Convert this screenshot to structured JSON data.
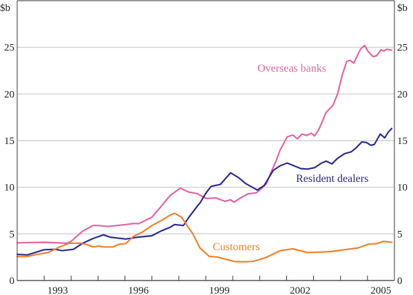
{
  "chart_data": {
    "type": "line",
    "unit_label_left": "$b",
    "unit_label_right": "$b",
    "xlim": [
      1992,
      2006
    ],
    "ylim": [
      0,
      30
    ],
    "yticks": [
      0,
      5,
      10,
      15,
      20,
      25
    ],
    "xtick_labels": [
      "1993",
      "1996",
      "1999",
      "2002",
      "2005"
    ],
    "grid": true,
    "series": [
      {
        "name": "Overseas banks",
        "color": "#e4649f",
        "points": [
          [
            1992.0,
            4.04
          ],
          [
            1993.0,
            4.1
          ],
          [
            1993.83,
            4.0
          ],
          [
            1994.0,
            4.2
          ],
          [
            1994.43,
            5.3
          ],
          [
            1994.81,
            5.9
          ],
          [
            1995.01,
            5.9
          ],
          [
            1995.37,
            5.8
          ],
          [
            1996.03,
            6.0
          ],
          [
            1996.3,
            6.1
          ],
          [
            1996.52,
            6.1
          ],
          [
            1997.0,
            6.8
          ],
          [
            1997.33,
            7.9
          ],
          [
            1997.67,
            9.1
          ],
          [
            1998.05,
            9.9
          ],
          [
            1998.35,
            9.5
          ],
          [
            1998.69,
            9.3
          ],
          [
            1999.01,
            8.8
          ],
          [
            1999.37,
            8.85
          ],
          [
            1999.71,
            8.5
          ],
          [
            1999.92,
            8.65
          ],
          [
            2000.05,
            8.4
          ],
          [
            2000.31,
            8.9
          ],
          [
            2000.57,
            9.3
          ],
          [
            2000.87,
            9.4
          ],
          [
            2001.08,
            9.9
          ],
          [
            2001.25,
            10.4
          ],
          [
            2001.42,
            11.6
          ],
          [
            2001.59,
            12.7
          ],
          [
            2001.76,
            14.0
          ],
          [
            2002.02,
            15.4
          ],
          [
            2002.23,
            15.6
          ],
          [
            2002.4,
            15.2
          ],
          [
            2002.57,
            15.7
          ],
          [
            2002.74,
            15.55
          ],
          [
            2002.91,
            15.8
          ],
          [
            2003.04,
            15.5
          ],
          [
            2003.21,
            16.3
          ],
          [
            2003.46,
            18.0
          ],
          [
            2003.72,
            18.8
          ],
          [
            2003.89,
            20.0
          ],
          [
            2004.06,
            22.0
          ],
          [
            2004.23,
            23.5
          ],
          [
            2004.36,
            23.6
          ],
          [
            2004.49,
            23.3
          ],
          [
            2004.74,
            24.8
          ],
          [
            2004.89,
            25.2
          ],
          [
            2005.04,
            24.5
          ],
          [
            2005.21,
            24.0
          ],
          [
            2005.34,
            24.1
          ],
          [
            2005.51,
            24.75
          ],
          [
            2005.6,
            24.6
          ],
          [
            2005.72,
            24.8
          ],
          [
            2005.9,
            24.7
          ]
        ]
      },
      {
        "name": "Resident dealers",
        "color": "#2b2b8e",
        "points": [
          [
            1992.0,
            2.8
          ],
          [
            1992.38,
            2.75
          ],
          [
            1993.0,
            3.3
          ],
          [
            1993.41,
            3.35
          ],
          [
            1993.66,
            3.2
          ],
          [
            1994.09,
            3.35
          ],
          [
            1994.43,
            4.0
          ],
          [
            1994.81,
            4.5
          ],
          [
            1995.2,
            4.9
          ],
          [
            1995.45,
            4.65
          ],
          [
            1996.03,
            4.45
          ],
          [
            1996.48,
            4.65
          ],
          [
            1997.0,
            4.8
          ],
          [
            1997.33,
            5.3
          ],
          [
            1997.67,
            5.7
          ],
          [
            1997.84,
            6.0
          ],
          [
            1998.17,
            5.9
          ],
          [
            1998.35,
            6.7
          ],
          [
            1998.69,
            8.0
          ],
          [
            1998.78,
            8.3
          ],
          [
            1999.01,
            9.4
          ],
          [
            1999.2,
            10.1
          ],
          [
            1999.54,
            10.3
          ],
          [
            1999.92,
            11.55
          ],
          [
            2000.23,
            11.0
          ],
          [
            2000.48,
            10.4
          ],
          [
            2000.91,
            9.7
          ],
          [
            2001.17,
            10.2
          ],
          [
            2001.5,
            11.8
          ],
          [
            2001.76,
            12.3
          ],
          [
            2002.02,
            12.6
          ],
          [
            2002.27,
            12.3
          ],
          [
            2002.53,
            12.0
          ],
          [
            2002.78,
            11.95
          ],
          [
            2003.04,
            12.1
          ],
          [
            2003.3,
            12.6
          ],
          [
            2003.47,
            12.8
          ],
          [
            2003.68,
            12.5
          ],
          [
            2003.89,
            13.1
          ],
          [
            2004.15,
            13.6
          ],
          [
            2004.4,
            13.8
          ],
          [
            2004.57,
            14.2
          ],
          [
            2004.79,
            14.85
          ],
          [
            2004.96,
            14.8
          ],
          [
            2005.13,
            14.5
          ],
          [
            2005.26,
            14.6
          ],
          [
            2005.47,
            15.7
          ],
          [
            2005.64,
            15.3
          ],
          [
            2005.77,
            15.9
          ],
          [
            2005.9,
            16.3
          ]
        ]
      },
      {
        "name": "Customers",
        "color": "#f0802f",
        "points": [
          [
            1992.0,
            2.55
          ],
          [
            1992.38,
            2.57
          ],
          [
            1992.72,
            2.8
          ],
          [
            1993.15,
            3.0
          ],
          [
            1993.58,
            3.6
          ],
          [
            1993.92,
            4.0
          ],
          [
            1994.35,
            4.0
          ],
          [
            1994.6,
            3.85
          ],
          [
            1994.81,
            3.6
          ],
          [
            1995.03,
            3.7
          ],
          [
            1995.2,
            3.6
          ],
          [
            1995.54,
            3.6
          ],
          [
            1995.8,
            3.9
          ],
          [
            1996.03,
            3.95
          ],
          [
            1996.3,
            4.7
          ],
          [
            1996.65,
            5.2
          ],
          [
            1997.0,
            5.9
          ],
          [
            1997.33,
            6.4
          ],
          [
            1997.67,
            7.0
          ],
          [
            1997.84,
            7.2
          ],
          [
            1998.1,
            6.8
          ],
          [
            1998.35,
            5.7
          ],
          [
            1998.52,
            5.0
          ],
          [
            1998.78,
            3.5
          ],
          [
            1999.12,
            2.6
          ],
          [
            1999.46,
            2.5
          ],
          [
            2000.05,
            2.05
          ],
          [
            2000.4,
            2.0
          ],
          [
            2000.74,
            2.05
          ],
          [
            2001.0,
            2.25
          ],
          [
            2001.25,
            2.5
          ],
          [
            2001.76,
            3.2
          ],
          [
            2002.23,
            3.4
          ],
          [
            2002.78,
            3.0
          ],
          [
            2003.3,
            3.05
          ],
          [
            2003.64,
            3.1
          ],
          [
            2004.15,
            3.3
          ],
          [
            2004.66,
            3.5
          ],
          [
            2005.04,
            3.9
          ],
          [
            2005.34,
            3.95
          ],
          [
            2005.6,
            4.2
          ],
          [
            2005.9,
            4.1
          ]
        ]
      }
    ]
  }
}
